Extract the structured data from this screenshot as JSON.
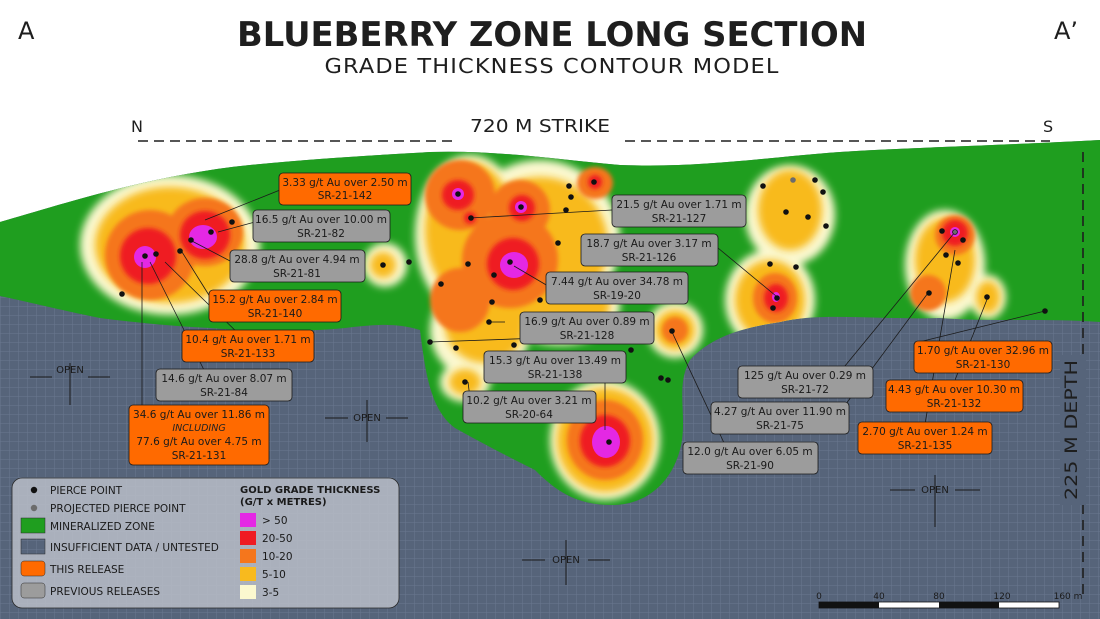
{
  "header": {
    "title": "BLUEBERRY ZONE LONG SECTION",
    "subtitle": "GRADE THICKNESS CONTOUR MODEL",
    "corner_left": "A",
    "corner_right": "A’",
    "north": "N",
    "south": "S",
    "strike": "720 M STRIKE",
    "depth": "225 M DEPTH"
  },
  "colors": {
    "background": "#56647a",
    "mineralized": "#1f9e1f",
    "gt_gt50": "#e428e4",
    "gt_20_50": "#ef1b22",
    "gt_10_20": "#f5761c",
    "gt_5_10": "#f8ba1e",
    "gt_3_5": "#fbf8cf",
    "this_release": "#ff6a00",
    "previous_releases": "#9c9c9c"
  },
  "open_labels": [
    "OPEN",
    "OPEN",
    "OPEN",
    "OPEN"
  ],
  "callouts": [
    {
      "id": "sr21142",
      "lines": [
        "3.33 g/t Au over 2.50 m",
        "SR-21-142"
      ],
      "release": "this"
    },
    {
      "id": "sr2182",
      "lines": [
        "16.5 g/t Au over 10.00 m",
        "SR-21-82"
      ],
      "release": "previous"
    },
    {
      "id": "sr2181",
      "lines": [
        "28.8 g/t Au over 4.94 m",
        "SR-21-81"
      ],
      "release": "previous"
    },
    {
      "id": "sr21140",
      "lines": [
        "15.2 g/t Au over 2.84 m",
        "SR-21-140"
      ],
      "release": "this"
    },
    {
      "id": "sr21133",
      "lines": [
        "10.4 g/t Au over 1.71 m",
        "SR-21-133"
      ],
      "release": "this"
    },
    {
      "id": "sr2184",
      "lines": [
        "14.6 g/t Au over 8.07 m",
        "SR-21-84"
      ],
      "release": "previous"
    },
    {
      "id": "sr21131",
      "lines": [
        "34.6 g/t Au over 11.86 m",
        "INCLUDING",
        "77.6 g/t Au over 4.75 m",
        "SR-21-131"
      ],
      "release": "this"
    },
    {
      "id": "sr21127",
      "lines": [
        "21.5 g/t Au over 1.71 m",
        "SR-21-127"
      ],
      "release": "previous"
    },
    {
      "id": "sr21126",
      "lines": [
        "18.7 g/t Au over 3.17 m",
        "SR-21-126"
      ],
      "release": "previous"
    },
    {
      "id": "sr1920",
      "lines": [
        "7.44 g/t Au over 34.78 m",
        "SR-19-20"
      ],
      "release": "previous"
    },
    {
      "id": "sr21128",
      "lines": [
        "16.9 g/t Au over 0.89 m",
        "SR-21-128"
      ],
      "release": "previous"
    },
    {
      "id": "sr21138",
      "lines": [
        "15.3 g/t Au over 13.49 m",
        "SR-21-138"
      ],
      "release": "previous"
    },
    {
      "id": "sr2064",
      "lines": [
        "10.2 g/t Au over 3.21 m",
        "SR-20-64"
      ],
      "release": "previous"
    },
    {
      "id": "sr2190",
      "lines": [
        "12.0 g/t Au over 6.05 m",
        "SR-21-90"
      ],
      "release": "previous"
    },
    {
      "id": "sr2172",
      "lines": [
        "125 g/t Au over 0.29 m",
        "SR-21-72"
      ],
      "release": "previous"
    },
    {
      "id": "sr2175",
      "lines": [
        "4.27 g/t Au over 11.90 m",
        "SR-21-75"
      ],
      "release": "previous"
    },
    {
      "id": "sr21130",
      "lines": [
        "1.70 g/t Au over 32.96 m",
        "SR-21-130"
      ],
      "release": "this"
    },
    {
      "id": "sr21132",
      "lines": [
        "4.43 g/t Au over 10.30 m",
        "SR-21-132"
      ],
      "release": "this"
    },
    {
      "id": "sr21135",
      "lines": [
        "2.70 g/t Au over 1.24 m",
        "SR-21-135"
      ],
      "release": "this"
    }
  ],
  "legend": {
    "items": [
      "PIERCE POINT",
      "PROJECTED PIERCE POINT",
      "MINERALIZED ZONE",
      "INSUFFICIENT DATA / UNTESTED",
      "THIS RELEASE",
      "PREVIOUS RELEASES"
    ],
    "grade_title": [
      "GOLD GRADE THICKNESS",
      "(G/T x METRES)"
    ],
    "grade_classes": [
      "> 50",
      "20-50",
      "10-20",
      "5-10",
      "3-5"
    ]
  },
  "scale": {
    "ticks": [
      "0",
      "40",
      "80",
      "120",
      "160 m"
    ]
  }
}
